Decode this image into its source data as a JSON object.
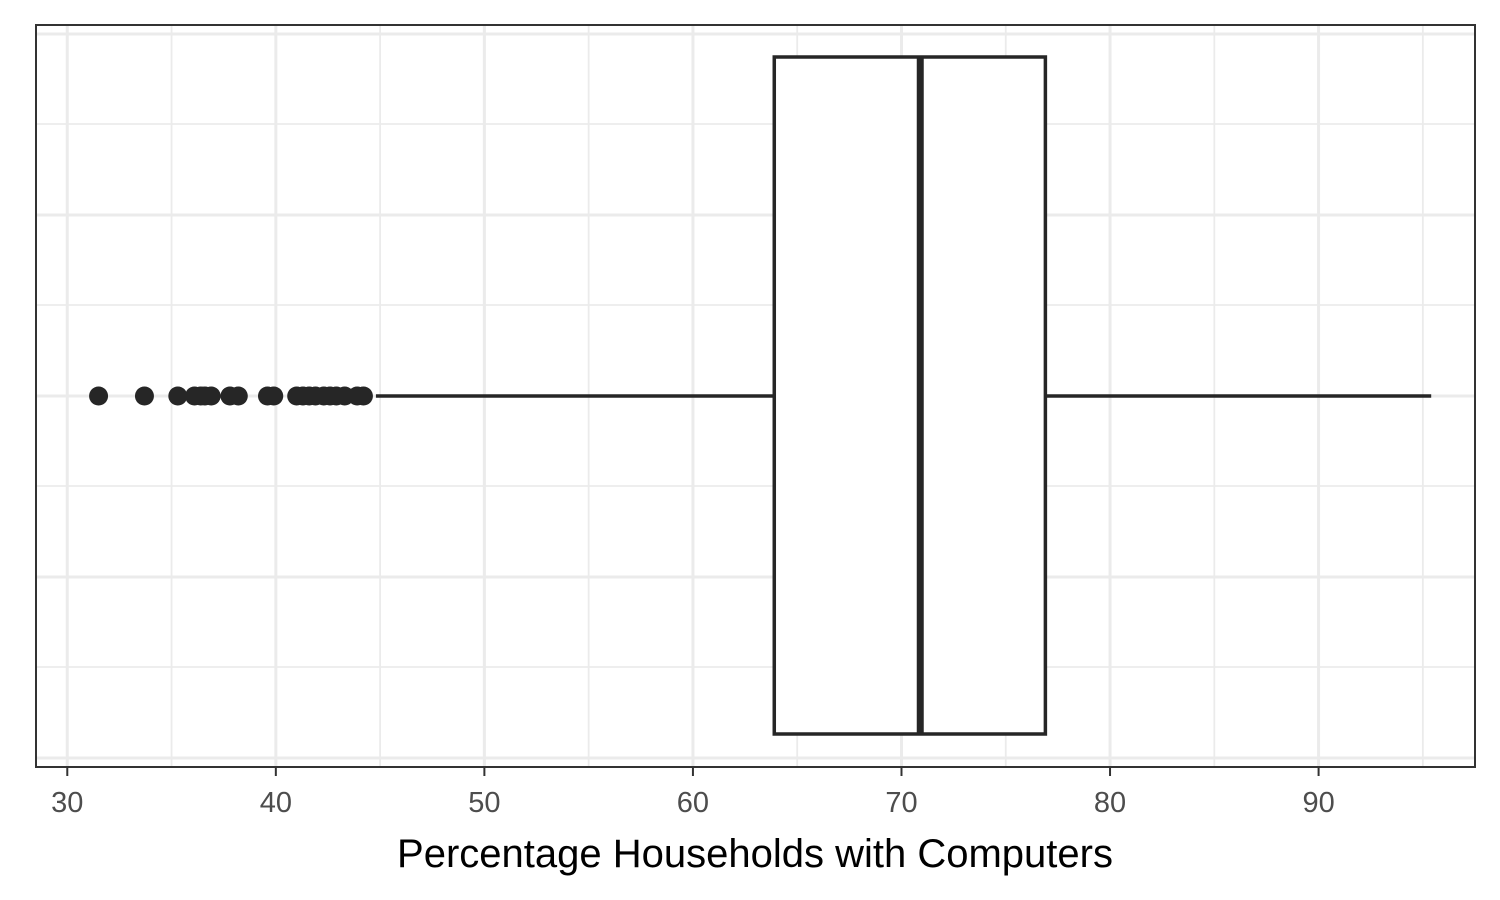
{
  "chart_data": {
    "type": "boxplot",
    "orientation": "horizontal",
    "title": "",
    "xlabel": "Percentage Households with Computers",
    "ylabel": "",
    "xlim": [
      28.5,
      97.5
    ],
    "x_ticks": [
      30,
      40,
      50,
      60,
      70,
      80,
      90
    ],
    "x_tick_labels": [
      "30",
      "40",
      "50",
      "60",
      "70",
      "80",
      "90"
    ],
    "x_minor_ticks": [
      35,
      45,
      55,
      65,
      75,
      85,
      95
    ],
    "grid": true,
    "box": {
      "whisker_low": 44.8,
      "q1": 63.9,
      "median": 70.9,
      "q3": 76.9,
      "whisker_high": 95.4
    },
    "outliers": [
      31.5,
      33.7,
      35.3,
      36.1,
      36.4,
      36.6,
      36.9,
      37.8,
      38.2,
      39.6,
      39.9,
      41.0,
      41.3,
      41.6,
      41.9,
      42.3,
      42.6,
      42.9,
      43.3,
      43.9,
      44.2
    ],
    "colors": {
      "box_fill": "#ffffff",
      "line": "#262626",
      "grid": "#ebebeb",
      "panel_border": "#333333",
      "tick_label": "#4d4d4d",
      "axis_title": "#000000"
    }
  }
}
